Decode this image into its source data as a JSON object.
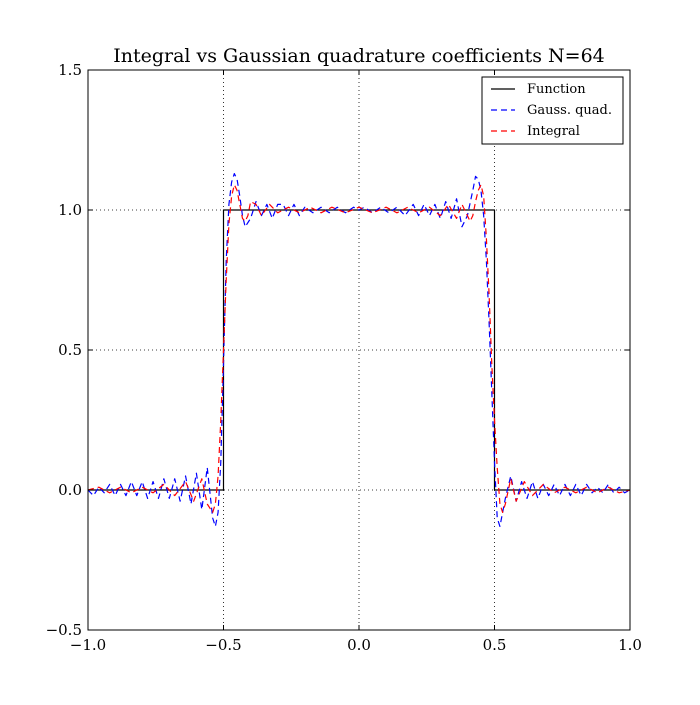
{
  "chart_data": {
    "type": "line",
    "title": "Integral vs Gaussian quadrature coefficients N=64",
    "xlabel": "",
    "ylabel": "",
    "xlim": [
      -1.0,
      1.0
    ],
    "ylim": [
      -0.5,
      1.5
    ],
    "x_ticks": [
      -1.0,
      -0.5,
      0.0,
      0.5,
      1.0
    ],
    "x_tick_labels": [
      "−1.0",
      "−0.5",
      "0.0",
      "0.5",
      "1.0"
    ],
    "y_ticks": [
      -0.5,
      0.0,
      0.5,
      1.0,
      1.5
    ],
    "y_tick_labels": [
      "−0.5",
      "0.0",
      "0.5",
      "1.0",
      "1.5"
    ],
    "grid": true,
    "legend_position": "top-right",
    "series": [
      {
        "name": "Function",
        "color": "#000000",
        "style": "solid",
        "x": [
          -1.0,
          -0.5,
          -0.5,
          0.5,
          0.5,
          1.0
        ],
        "y": [
          0.0,
          0.0,
          1.0,
          1.0,
          0.0,
          0.0
        ]
      },
      {
        "name": "Gauss. quad.",
        "color": "#0000ff",
        "style": "dashed",
        "x": [
          -1.0,
          -0.98,
          -0.96,
          -0.94,
          -0.92,
          -0.9,
          -0.88,
          -0.86,
          -0.84,
          -0.82,
          -0.8,
          -0.78,
          -0.76,
          -0.74,
          -0.72,
          -0.7,
          -0.68,
          -0.66,
          -0.64,
          -0.62,
          -0.6,
          -0.58,
          -0.56,
          -0.54,
          -0.53,
          -0.52,
          -0.51,
          -0.5,
          -0.49,
          -0.48,
          -0.47,
          -0.46,
          -0.45,
          -0.44,
          -0.43,
          -0.42,
          -0.4,
          -0.38,
          -0.36,
          -0.34,
          -0.32,
          -0.3,
          -0.28,
          -0.26,
          -0.24,
          -0.22,
          -0.2,
          -0.17,
          -0.14,
          -0.11,
          -0.08,
          -0.05,
          -0.02,
          0.0,
          0.02,
          0.05,
          0.08,
          0.11,
          0.14,
          0.17,
          0.2,
          0.22,
          0.24,
          0.26,
          0.28,
          0.3,
          0.32,
          0.34,
          0.36,
          0.38,
          0.4,
          0.42,
          0.43,
          0.44,
          0.45,
          0.46,
          0.47,
          0.48,
          0.49,
          0.5,
          0.51,
          0.52,
          0.53,
          0.54,
          0.56,
          0.58,
          0.6,
          0.62,
          0.64,
          0.66,
          0.68,
          0.7,
          0.72,
          0.74,
          0.76,
          0.78,
          0.8,
          0.82,
          0.84,
          0.86,
          0.88,
          0.9,
          0.92,
          0.94,
          0.96,
          0.98,
          1.0
        ],
        "y": [
          0.0,
          -0.02,
          0.01,
          -0.01,
          0.02,
          -0.02,
          0.02,
          -0.02,
          0.03,
          -0.02,
          0.03,
          -0.03,
          0.03,
          -0.03,
          0.04,
          -0.03,
          0.04,
          -0.04,
          0.05,
          -0.05,
          0.06,
          -0.07,
          0.08,
          -0.1,
          -0.13,
          -0.08,
          0.1,
          0.45,
          0.82,
          1.02,
          1.1,
          1.13,
          1.11,
          1.05,
          0.98,
          0.94,
          0.97,
          1.03,
          0.98,
          1.02,
          0.97,
          1.02,
          1.02,
          0.98,
          1.02,
          0.98,
          1.01,
          0.99,
          1.01,
          0.99,
          1.01,
          0.99,
          1.01,
          1.0,
          1.01,
          0.99,
          1.01,
          0.99,
          1.01,
          0.98,
          1.02,
          0.98,
          1.02,
          0.98,
          1.02,
          0.97,
          1.03,
          0.97,
          1.04,
          0.94,
          0.98,
          1.07,
          1.12,
          1.11,
          1.07,
          0.98,
          0.82,
          0.6,
          0.35,
          0.1,
          -0.1,
          -0.13,
          -0.08,
          -0.03,
          0.05,
          -0.04,
          0.03,
          -0.03,
          0.03,
          -0.03,
          0.02,
          -0.02,
          0.02,
          -0.02,
          0.02,
          -0.02,
          0.02,
          -0.02,
          0.02,
          -0.01,
          0.01,
          -0.01,
          0.02,
          -0.01,
          0.01,
          -0.01,
          0.0
        ]
      },
      {
        "name": "Integral",
        "color": "#ff0000",
        "style": "dashed",
        "x": [
          -1.0,
          -0.96,
          -0.92,
          -0.88,
          -0.84,
          -0.8,
          -0.76,
          -0.72,
          -0.68,
          -0.64,
          -0.61,
          -0.58,
          -0.56,
          -0.54,
          -0.53,
          -0.52,
          -0.51,
          -0.5,
          -0.49,
          -0.48,
          -0.47,
          -0.46,
          -0.45,
          -0.44,
          -0.43,
          -0.42,
          -0.41,
          -0.4,
          -0.38,
          -0.36,
          -0.33,
          -0.3,
          -0.26,
          -0.22,
          -0.18,
          -0.14,
          -0.1,
          -0.05,
          0.0,
          0.05,
          0.1,
          0.14,
          0.18,
          0.22,
          0.26,
          0.3,
          0.33,
          0.36,
          0.38,
          0.4,
          0.41,
          0.42,
          0.43,
          0.44,
          0.45,
          0.46,
          0.47,
          0.48,
          0.49,
          0.5,
          0.51,
          0.52,
          0.53,
          0.54,
          0.56,
          0.58,
          0.61,
          0.64,
          0.68,
          0.72,
          0.76,
          0.8,
          0.84,
          0.88,
          0.92,
          0.96,
          1.0
        ],
        "y": [
          0.0,
          0.01,
          -0.01,
          0.01,
          -0.01,
          0.01,
          -0.01,
          0.02,
          -0.02,
          0.03,
          -0.04,
          0.04,
          -0.05,
          -0.08,
          -0.05,
          0.05,
          0.25,
          0.5,
          0.75,
          0.95,
          1.05,
          1.09,
          1.07,
          1.02,
          0.97,
          0.96,
          0.98,
          1.03,
          1.02,
          0.98,
          1.02,
          0.99,
          1.01,
          0.99,
          1.01,
          0.99,
          1.01,
          0.99,
          1.01,
          0.99,
          1.01,
          0.99,
          1.01,
          0.99,
          1.01,
          0.98,
          1.02,
          0.97,
          1.02,
          0.98,
          0.96,
          0.98,
          1.03,
          1.07,
          1.09,
          1.05,
          0.9,
          0.7,
          0.45,
          0.25,
          0.08,
          -0.05,
          -0.08,
          -0.05,
          0.04,
          -0.04,
          0.03,
          -0.02,
          0.02,
          -0.01,
          0.01,
          -0.01,
          0.01,
          -0.01,
          0.01,
          -0.01,
          0.0
        ]
      }
    ]
  }
}
